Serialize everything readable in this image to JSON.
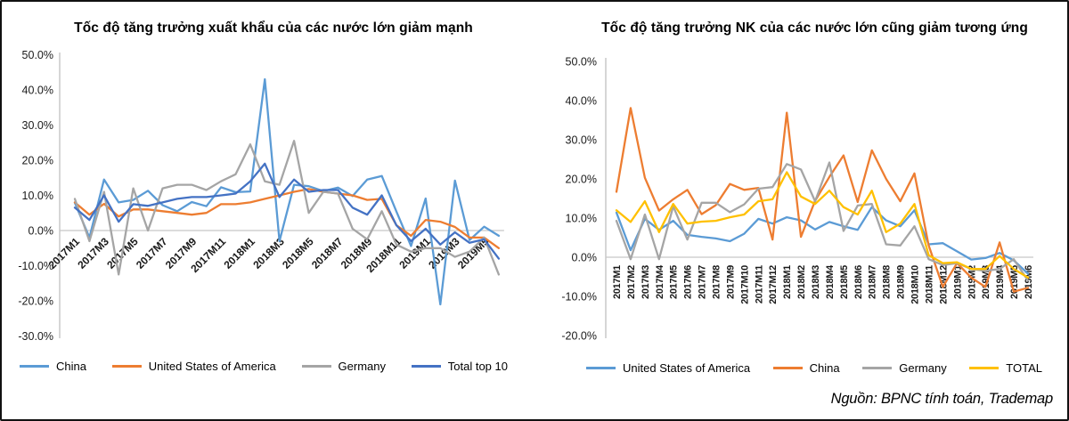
{
  "source_note": "Nguồn: BPNC tính toán, Trademap",
  "chart_data": [
    {
      "type": "line",
      "title": "Tốc độ tăng trưởng xuất khẩu của các nước lớn giảm mạnh",
      "xlabel": "",
      "ylabel": "",
      "ylim": [
        -30,
        50
      ],
      "grid": "zero-line-only",
      "legend_position": "bottom",
      "x_label_step": 2,
      "y_ticks": [
        {
          "v": 50,
          "label": "50.0%"
        },
        {
          "v": 40,
          "label": "40.0%"
        },
        {
          "v": 30,
          "label": "30.0%"
        },
        {
          "v": 20,
          "label": "20.0%"
        },
        {
          "v": 10,
          "label": "10.0%"
        },
        {
          "v": 0,
          "label": "0.0%"
        },
        {
          "v": -10,
          "label": "-10.0%"
        },
        {
          "v": -20,
          "label": "-20.0%"
        },
        {
          "v": -30,
          "label": "-30.0%"
        }
      ],
      "x_categories": [
        "2017M1",
        "2017M2",
        "2017M3",
        "2017M4",
        "2017M5",
        "2017M6",
        "2017M7",
        "2017M8",
        "2017M9",
        "2017M10",
        "2017M11",
        "2017M12",
        "2018M1",
        "2018M2",
        "2018M3",
        "2018M4",
        "2018M5",
        "2018M6",
        "2018M7",
        "2018M8",
        "2018M9",
        "2018M10",
        "2018M11",
        "2018M12",
        "2019M1",
        "2019M2",
        "2019M3",
        "2019M4",
        "2019M5",
        "2019M6"
      ],
      "series": [
        {
          "name": "China",
          "color": "#5B9BD5",
          "values": [
            7.9,
            -2,
            14.5,
            8,
            8.7,
            11.3,
            7.2,
            5.5,
            8.1,
            6.9,
            12.3,
            10.9,
            11.1,
            43,
            -3,
            13,
            12.6,
            11.2,
            12.2,
            9.8,
            14.5,
            15.5,
            5.4,
            -4.4,
            9.1,
            -21,
            14.2,
            -2.7,
            1.1,
            -1.5
          ]
        },
        {
          "name": "United States of America",
          "color": "#ED7D31",
          "values": [
            8,
            4.5,
            7.6,
            4,
            6,
            6,
            5.5,
            5,
            4.5,
            5,
            7.5,
            7.5,
            8,
            9,
            10,
            11,
            11.8,
            11,
            10.5,
            10,
            8.7,
            9,
            1.5,
            -1.5,
            3,
            2.5,
            1,
            -2,
            -2,
            -5
          ]
        },
        {
          "name": "Germany",
          "color": "#A5A5A5",
          "values": [
            9,
            -3,
            11,
            -12.5,
            12,
            0,
            12,
            13,
            13,
            11.5,
            14,
            16,
            24.5,
            14,
            13,
            25.5,
            5,
            11,
            10.5,
            0.5,
            -2.5,
            5.5,
            -4,
            -6,
            -5,
            -5,
            -7.5,
            -6,
            -2,
            -12.5
          ]
        },
        {
          "name": "Total top 10",
          "color": "#4472C4",
          "values": [
            6.5,
            3,
            10,
            2.5,
            7.5,
            7,
            8,
            9,
            9.5,
            9.5,
            10,
            10.5,
            14,
            19,
            9.5,
            14.5,
            11,
            11.5,
            11.5,
            6.5,
            4.5,
            10,
            1.5,
            -3,
            0.5,
            -4,
            -0.5,
            -3.5,
            -2.5,
            -8
          ]
        }
      ]
    },
    {
      "type": "line",
      "title": "Tốc độ tăng trưởng NK của các nước lớn cũng giảm tương ứng",
      "xlabel": "",
      "ylabel": "",
      "ylim": [
        -20,
        50
      ],
      "grid": "zero-line-only",
      "legend_position": "bottom",
      "x_label_step": 1,
      "y_ticks": [
        {
          "v": 50,
          "label": "50.0%"
        },
        {
          "v": 40,
          "label": "40.0%"
        },
        {
          "v": 30,
          "label": "30.0%"
        },
        {
          "v": 20,
          "label": "20.0%"
        },
        {
          "v": 10,
          "label": "10.0%"
        },
        {
          "v": 0,
          "label": "0.0%"
        },
        {
          "v": -10,
          "label": "-10.0%"
        },
        {
          "v": -20,
          "label": "-20.0%"
        }
      ],
      "x_categories": [
        "2017M1",
        "2017M2",
        "2017M3",
        "2017M4",
        "2017M5",
        "2017M6",
        "2017M7",
        "2017M8",
        "2017M9",
        "2017M10",
        "2017M11",
        "2017M12",
        "2018M1",
        "2018M2",
        "2018M3",
        "2018M4",
        "2018M5",
        "2018M6",
        "2018M7",
        "2018M8",
        "2018M9",
        "2018M10",
        "2018M11",
        "2018M12",
        "2019M1",
        "2019M2",
        "2019M3",
        "2019M4",
        "2019M5",
        "2019M6"
      ],
      "series": [
        {
          "name": "United States of America",
          "color": "#5B9BD5",
          "values": [
            11.4,
            1.8,
            9.8,
            7,
            9.3,
            5.7,
            5.2,
            4.8,
            4.1,
            6,
            9.8,
            8.6,
            10.2,
            9.4,
            7.1,
            9,
            7.9,
            7,
            12.8,
            9.4,
            7.9,
            12,
            3.3,
            3.6,
            1.5,
            -0.6,
            -0.2,
            1.1,
            -0.8,
            -4.2
          ]
        },
        {
          "name": "China",
          "color": "#ED7D31",
          "values": [
            16.7,
            38.1,
            20.3,
            11.9,
            14.8,
            17.2,
            11,
            13.3,
            18.7,
            17.2,
            17.7,
            4.5,
            36.9,
            5.2,
            14.4,
            20.5,
            26,
            14.1,
            27.3,
            20,
            14.3,
            21.4,
            3,
            -7.6,
            -1.5,
            -5.2,
            -7.6,
            3.8,
            -8.8,
            -7.8
          ]
        },
        {
          "name": "Germany",
          "color": "#A5A5A5",
          "values": [
            9.3,
            -0.5,
            10.9,
            -0.5,
            13,
            4.5,
            13.9,
            13.9,
            11.5,
            13.5,
            17.5,
            17.9,
            23.8,
            22.4,
            14.3,
            24.2,
            6.7,
            13.2,
            13.6,
            3.3,
            3,
            7.9,
            -0.5,
            -2,
            -1.5,
            -3,
            -3.5,
            -3,
            -0.5,
            -6
          ]
        },
        {
          "name": "TOTAL",
          "color": "#FFC000",
          "values": [
            12,
            9,
            14.3,
            6.4,
            13.6,
            8.6,
            9.1,
            9.3,
            10.2,
            10.9,
            14.3,
            14.8,
            21.7,
            15.5,
            13.6,
            17,
            12.8,
            10.9,
            17,
            6.4,
            8.6,
            13.6,
            0.5,
            -1.5,
            -1.3,
            -3,
            -3,
            0.3,
            -3,
            -5.2
          ]
        }
      ]
    }
  ]
}
